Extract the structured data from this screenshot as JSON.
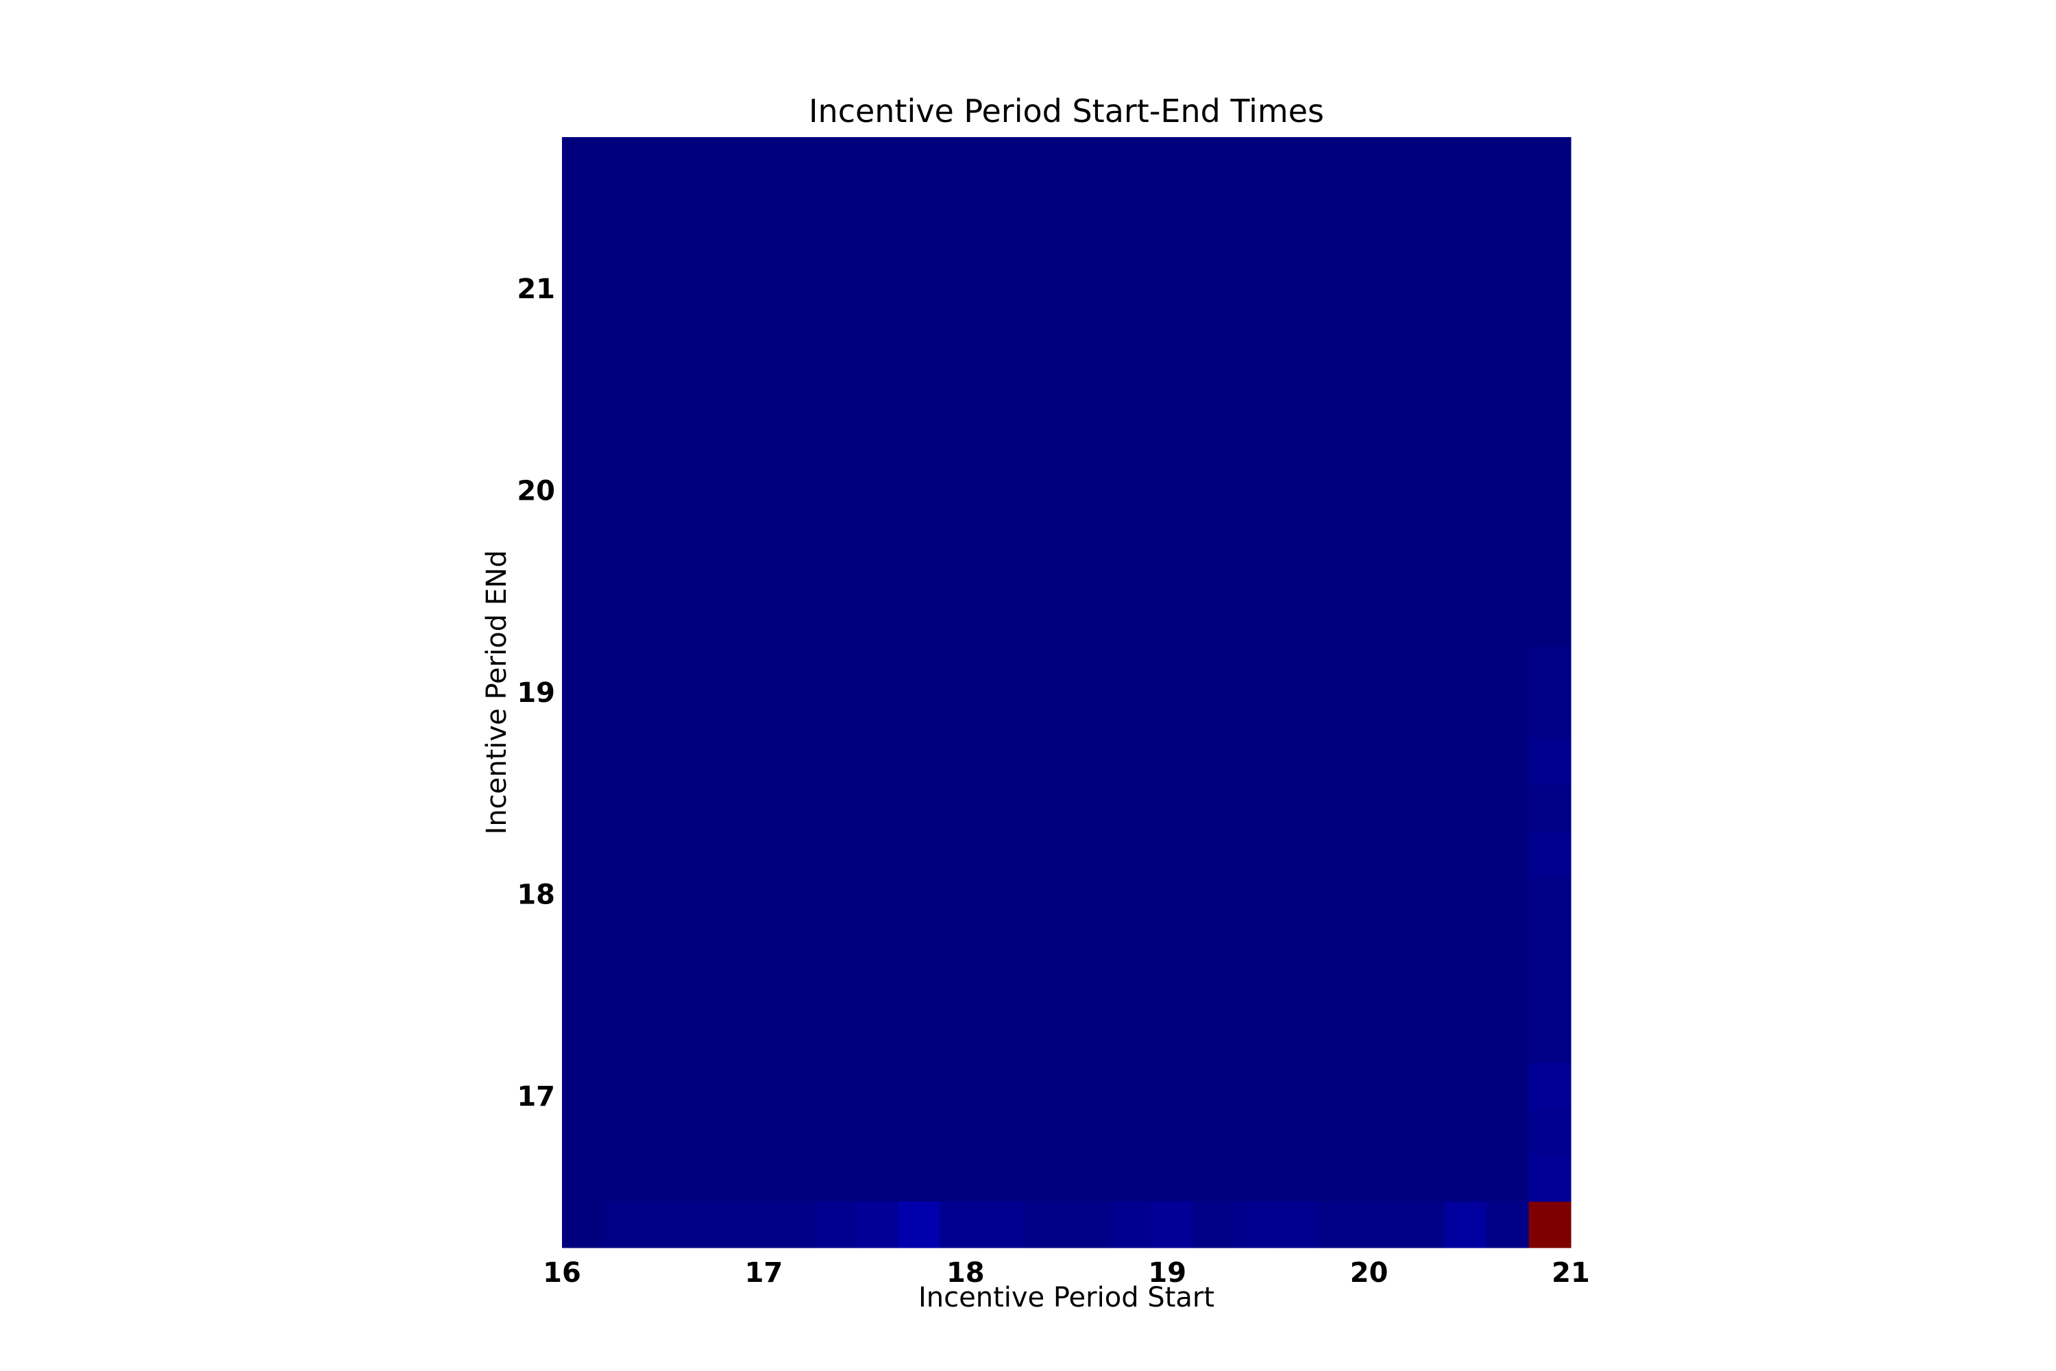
{
  "chart_data": {
    "type": "heatmap",
    "title": "Incentive Period Start-End Times",
    "xlabel": "Incentive Period Start",
    "ylabel": "Incentive Period ENd",
    "xlim": [
      16,
      21
    ],
    "ylim": [
      16.25,
      21.75
    ],
    "xticks": [
      "16",
      "17",
      "18",
      "19",
      "20",
      "21"
    ],
    "yticks": [
      "17",
      "18",
      "19",
      "20",
      "21"
    ],
    "grid": false,
    "colormap": [
      "#00007f",
      "#0000ff",
      "#00ffff",
      "#7fff7f",
      "#ffff00",
      "#ff0000",
      "#7f0000"
    ],
    "cells_description": "Value grid: rows by end time (lowest row first), columns by start time; values normalized 0-1",
    "cells": [
      [
        0.0,
        0.01,
        0.01,
        0.01,
        0.01,
        0.01,
        0.02,
        0.03,
        0.06,
        0.02,
        0.02,
        0.01,
        0.01,
        0.02,
        0.03,
        0.01,
        0.02,
        0.02,
        0.01,
        0.01,
        0.01,
        0.04,
        0.01,
        1.0
      ],
      [
        0.0,
        0.0,
        0.0,
        0.0,
        0.0,
        0.0,
        0.0,
        0.0,
        0.0,
        0.0,
        0.0,
        0.0,
        0.0,
        0.0,
        0.0,
        0.0,
        0.0,
        0.0,
        0.0,
        0.0,
        0.0,
        0.0,
        0.0,
        0.03
      ],
      [
        0.0,
        0.0,
        0.0,
        0.0,
        0.0,
        0.0,
        0.0,
        0.0,
        0.0,
        0.0,
        0.0,
        0.0,
        0.0,
        0.0,
        0.0,
        0.0,
        0.0,
        0.0,
        0.0,
        0.0,
        0.0,
        0.0,
        0.0,
        0.02
      ],
      [
        0.0,
        0.0,
        0.0,
        0.0,
        0.0,
        0.0,
        0.0,
        0.0,
        0.0,
        0.0,
        0.0,
        0.0,
        0.0,
        0.0,
        0.0,
        0.0,
        0.0,
        0.0,
        0.0,
        0.0,
        0.0,
        0.0,
        0.0,
        0.03
      ],
      [
        0.0,
        0.0,
        0.0,
        0.0,
        0.0,
        0.0,
        0.0,
        0.0,
        0.0,
        0.0,
        0.0,
        0.0,
        0.0,
        0.0,
        0.0,
        0.0,
        0.0,
        0.0,
        0.0,
        0.0,
        0.0,
        0.0,
        0.0,
        0.01
      ],
      [
        0.0,
        0.0,
        0.0,
        0.0,
        0.0,
        0.0,
        0.0,
        0.0,
        0.0,
        0.0,
        0.0,
        0.0,
        0.0,
        0.0,
        0.0,
        0.0,
        0.0,
        0.0,
        0.0,
        0.0,
        0.0,
        0.0,
        0.0,
        0.01
      ],
      [
        0.0,
        0.0,
        0.0,
        0.0,
        0.0,
        0.0,
        0.0,
        0.0,
        0.0,
        0.0,
        0.0,
        0.0,
        0.0,
        0.0,
        0.0,
        0.0,
        0.0,
        0.0,
        0.0,
        0.0,
        0.0,
        0.0,
        0.0,
        0.01
      ],
      [
        0.0,
        0.0,
        0.0,
        0.0,
        0.0,
        0.0,
        0.0,
        0.0,
        0.0,
        0.0,
        0.0,
        0.0,
        0.0,
        0.0,
        0.0,
        0.0,
        0.0,
        0.0,
        0.0,
        0.0,
        0.0,
        0.0,
        0.0,
        0.01
      ],
      [
        0.0,
        0.0,
        0.0,
        0.0,
        0.0,
        0.0,
        0.0,
        0.0,
        0.0,
        0.0,
        0.0,
        0.0,
        0.0,
        0.0,
        0.0,
        0.0,
        0.0,
        0.0,
        0.0,
        0.0,
        0.0,
        0.0,
        0.0,
        0.02
      ],
      [
        0.0,
        0.0,
        0.0,
        0.0,
        0.0,
        0.0,
        0.0,
        0.0,
        0.0,
        0.0,
        0.0,
        0.0,
        0.0,
        0.0,
        0.0,
        0.0,
        0.0,
        0.0,
        0.0,
        0.0,
        0.0,
        0.0,
        0.0,
        0.01
      ],
      [
        0.0,
        0.0,
        0.0,
        0.0,
        0.0,
        0.0,
        0.0,
        0.0,
        0.0,
        0.0,
        0.0,
        0.0,
        0.0,
        0.0,
        0.0,
        0.0,
        0.0,
        0.0,
        0.0,
        0.0,
        0.0,
        0.0,
        0.0,
        0.02
      ],
      [
        0.0,
        0.0,
        0.0,
        0.0,
        0.0,
        0.0,
        0.0,
        0.0,
        0.0,
        0.0,
        0.0,
        0.0,
        0.0,
        0.0,
        0.0,
        0.0,
        0.0,
        0.0,
        0.0,
        0.0,
        0.0,
        0.0,
        0.0,
        0.01
      ],
      [
        0.0,
        0.0,
        0.0,
        0.0,
        0.0,
        0.0,
        0.0,
        0.0,
        0.0,
        0.0,
        0.0,
        0.0,
        0.0,
        0.0,
        0.0,
        0.0,
        0.0,
        0.0,
        0.0,
        0.0,
        0.0,
        0.0,
        0.0,
        0.01
      ],
      [
        0.0,
        0.0,
        0.0,
        0.0,
        0.0,
        0.0,
        0.0,
        0.0,
        0.0,
        0.0,
        0.0,
        0.0,
        0.0,
        0.0,
        0.0,
        0.0,
        0.0,
        0.0,
        0.0,
        0.0,
        0.0,
        0.0,
        0.0,
        0.0
      ],
      [
        0.0,
        0.0,
        0.0,
        0.0,
        0.0,
        0.0,
        0.0,
        0.0,
        0.0,
        0.0,
        0.0,
        0.0,
        0.0,
        0.0,
        0.0,
        0.0,
        0.0,
        0.0,
        0.0,
        0.0,
        0.0,
        0.0,
        0.0,
        0.0
      ],
      [
        0.0,
        0.0,
        0.0,
        0.0,
        0.0,
        0.0,
        0.0,
        0.0,
        0.0,
        0.0,
        0.0,
        0.0,
        0.0,
        0.0,
        0.0,
        0.0,
        0.0,
        0.0,
        0.0,
        0.0,
        0.0,
        0.0,
        0.0,
        0.0
      ],
      [
        0.0,
        0.0,
        0.0,
        0.0,
        0.0,
        0.0,
        0.0,
        0.0,
        0.0,
        0.0,
        0.0,
        0.0,
        0.0,
        0.0,
        0.0,
        0.0,
        0.0,
        0.0,
        0.0,
        0.0,
        0.0,
        0.0,
        0.0,
        0.0
      ],
      [
        0.0,
        0.0,
        0.0,
        0.0,
        0.0,
        0.0,
        0.0,
        0.0,
        0.0,
        0.0,
        0.0,
        0.0,
        0.0,
        0.0,
        0.0,
        0.0,
        0.0,
        0.0,
        0.0,
        0.0,
        0.0,
        0.0,
        0.0,
        0.0
      ],
      [
        0.0,
        0.0,
        0.0,
        0.0,
        0.0,
        0.0,
        0.0,
        0.0,
        0.0,
        0.0,
        0.0,
        0.0,
        0.0,
        0.0,
        0.0,
        0.0,
        0.0,
        0.0,
        0.0,
        0.0,
        0.0,
        0.0,
        0.0,
        0.0
      ],
      [
        0.0,
        0.0,
        0.0,
        0.0,
        0.0,
        0.0,
        0.0,
        0.0,
        0.0,
        0.0,
        0.0,
        0.0,
        0.0,
        0.0,
        0.0,
        0.0,
        0.0,
        0.0,
        0.0,
        0.0,
        0.0,
        0.0,
        0.0,
        0.0
      ],
      [
        0.0,
        0.0,
        0.0,
        0.0,
        0.0,
        0.0,
        0.0,
        0.0,
        0.0,
        0.0,
        0.0,
        0.0,
        0.0,
        0.0,
        0.0,
        0.0,
        0.0,
        0.0,
        0.0,
        0.0,
        0.0,
        0.0,
        0.0,
        0.0
      ],
      [
        0.0,
        0.0,
        0.0,
        0.0,
        0.0,
        0.0,
        0.0,
        0.0,
        0.0,
        0.0,
        0.0,
        0.0,
        0.0,
        0.0,
        0.0,
        0.0,
        0.0,
        0.0,
        0.0,
        0.0,
        0.0,
        0.0,
        0.0,
        0.0
      ],
      [
        0.0,
        0.0,
        0.0,
        0.0,
        0.0,
        0.0,
        0.0,
        0.0,
        0.0,
        0.0,
        0.0,
        0.0,
        0.0,
        0.0,
        0.0,
        0.0,
        0.0,
        0.0,
        0.0,
        0.0,
        0.0,
        0.0,
        0.0,
        0.0
      ],
      [
        0.0,
        0.0,
        0.0,
        0.0,
        0.0,
        0.0,
        0.0,
        0.0,
        0.0,
        0.0,
        0.0,
        0.0,
        0.0,
        0.0,
        0.0,
        0.0,
        0.0,
        0.0,
        0.0,
        0.0,
        0.0,
        0.0,
        0.0,
        0.0
      ]
    ]
  }
}
